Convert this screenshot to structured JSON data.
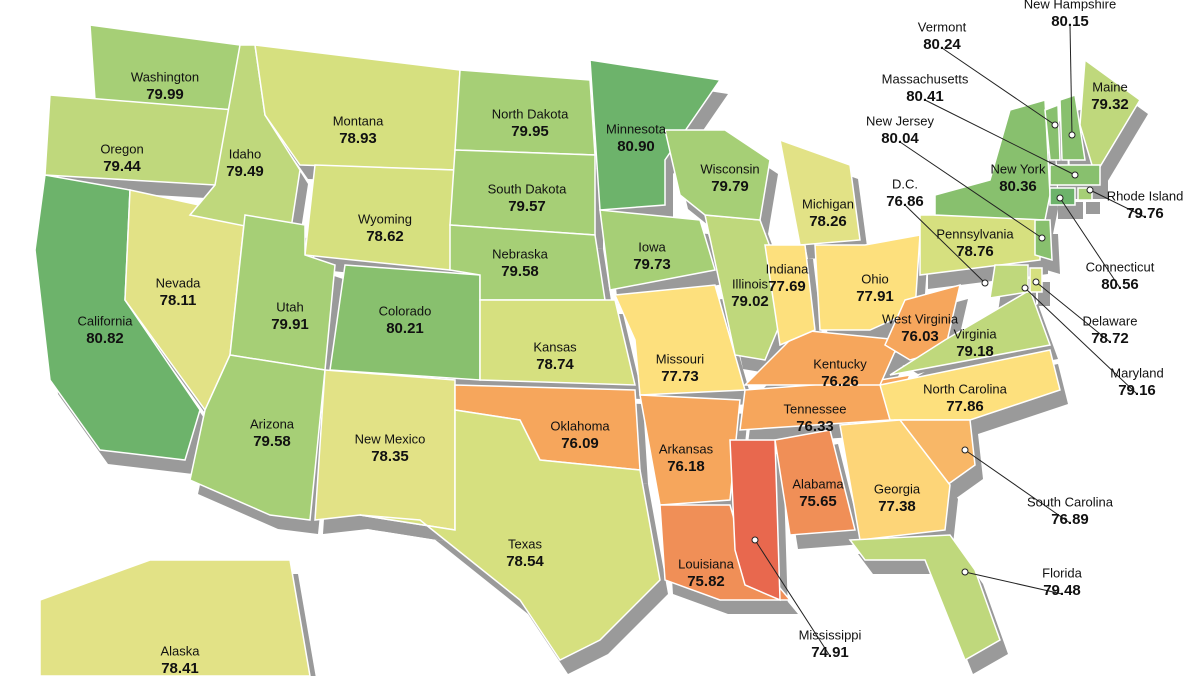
{
  "states": [
    {
      "name": "Washington",
      "value": "79.99",
      "color": "#a6cf76"
    },
    {
      "name": "Oregon",
      "value": "79.44",
      "color": "#bfd87c"
    },
    {
      "name": "California",
      "value": "80.82",
      "color": "#6db36b"
    },
    {
      "name": "Nevada",
      "value": "78.11",
      "color": "#e2e286"
    },
    {
      "name": "Idaho",
      "value": "79.49",
      "color": "#bfd87c"
    },
    {
      "name": "Montana",
      "value": "78.93",
      "color": "#d6e07f"
    },
    {
      "name": "Wyoming",
      "value": "78.62",
      "color": "#d6e07f"
    },
    {
      "name": "Utah",
      "value": "79.91",
      "color": "#a6cf76"
    },
    {
      "name": "Colorado",
      "value": "80.21",
      "color": "#88c06e"
    },
    {
      "name": "Arizona",
      "value": "79.58",
      "color": "#a6cf76"
    },
    {
      "name": "New Mexico",
      "value": "78.35",
      "color": "#e2e286"
    },
    {
      "name": "North Dakota",
      "value": "79.95",
      "color": "#a6cf76"
    },
    {
      "name": "South Dakota",
      "value": "79.57",
      "color": "#a6cf76"
    },
    {
      "name": "Nebraska",
      "value": "79.58",
      "color": "#a6cf76"
    },
    {
      "name": "Kansas",
      "value": "78.74",
      "color": "#d6e07f"
    },
    {
      "name": "Oklahoma",
      "value": "76.09",
      "color": "#f6a65c"
    },
    {
      "name": "Texas",
      "value": "78.54",
      "color": "#d6e07f"
    },
    {
      "name": "Minnesota",
      "value": "80.90",
      "color": "#6db36b"
    },
    {
      "name": "Iowa",
      "value": "79.73",
      "color": "#a6cf76"
    },
    {
      "name": "Missouri",
      "value": "77.73",
      "color": "#fde07d"
    },
    {
      "name": "Arkansas",
      "value": "76.18",
      "color": "#f6a65c"
    },
    {
      "name": "Louisiana",
      "value": "75.82",
      "color": "#f08f57"
    },
    {
      "name": "Mississippi",
      "value": "74.91",
      "color": "#e8684e"
    },
    {
      "name": "Alabama",
      "value": "75.65",
      "color": "#f08f57"
    },
    {
      "name": "Tennessee",
      "value": "76.33",
      "color": "#f6a65c"
    },
    {
      "name": "Kentucky",
      "value": "76.26",
      "color": "#f6a65c"
    },
    {
      "name": "Illinois",
      "value": "79.02",
      "color": "#bfd87c"
    },
    {
      "name": "Wisconsin",
      "value": "79.79",
      "color": "#a6cf76"
    },
    {
      "name": "Michigan",
      "value": "78.26",
      "color": "#e2e286"
    },
    {
      "name": "Indiana",
      "value": "77.69",
      "color": "#fde07d"
    },
    {
      "name": "Ohio",
      "value": "77.91",
      "color": "#fde07d"
    },
    {
      "name": "West Virginia",
      "value": "76.03",
      "color": "#f6a65c"
    },
    {
      "name": "Virginia",
      "value": "79.18",
      "color": "#bfd87c"
    },
    {
      "name": "North Carolina",
      "value": "77.86",
      "color": "#fde07d"
    },
    {
      "name": "South Carolina",
      "value": "76.89",
      "color": "#f8b767"
    },
    {
      "name": "Georgia",
      "value": "77.38",
      "color": "#fdd578"
    },
    {
      "name": "Florida",
      "value": "79.48",
      "color": "#bfd87c"
    },
    {
      "name": "Pennsylvania",
      "value": "78.76",
      "color": "#d6e07f"
    },
    {
      "name": "New York",
      "value": "80.36",
      "color": "#88c06e"
    },
    {
      "name": "Vermont",
      "value": "80.24",
      "color": "#88c06e"
    },
    {
      "name": "New Hampshire",
      "value": "80.15",
      "color": "#88c06e"
    },
    {
      "name": "Maine",
      "value": "79.32",
      "color": "#bfd87c"
    },
    {
      "name": "Massachusetts",
      "value": "80.41",
      "color": "#88c06e"
    },
    {
      "name": "Rhode Island",
      "value": "79.76",
      "color": "#a6cf76"
    },
    {
      "name": "Connecticut",
      "value": "80.56",
      "color": "#6db36b"
    },
    {
      "name": "New Jersey",
      "value": "80.04",
      "color": "#88c06e"
    },
    {
      "name": "Delaware",
      "value": "78.72",
      "color": "#d6e07f"
    },
    {
      "name": "Maryland",
      "value": "79.16",
      "color": "#bfd87c"
    },
    {
      "name": "D.C.",
      "value": "76.86",
      "color": "#f8b767"
    },
    {
      "name": "Alaska",
      "value": "78.41",
      "color": "#e2e286"
    }
  ]
}
